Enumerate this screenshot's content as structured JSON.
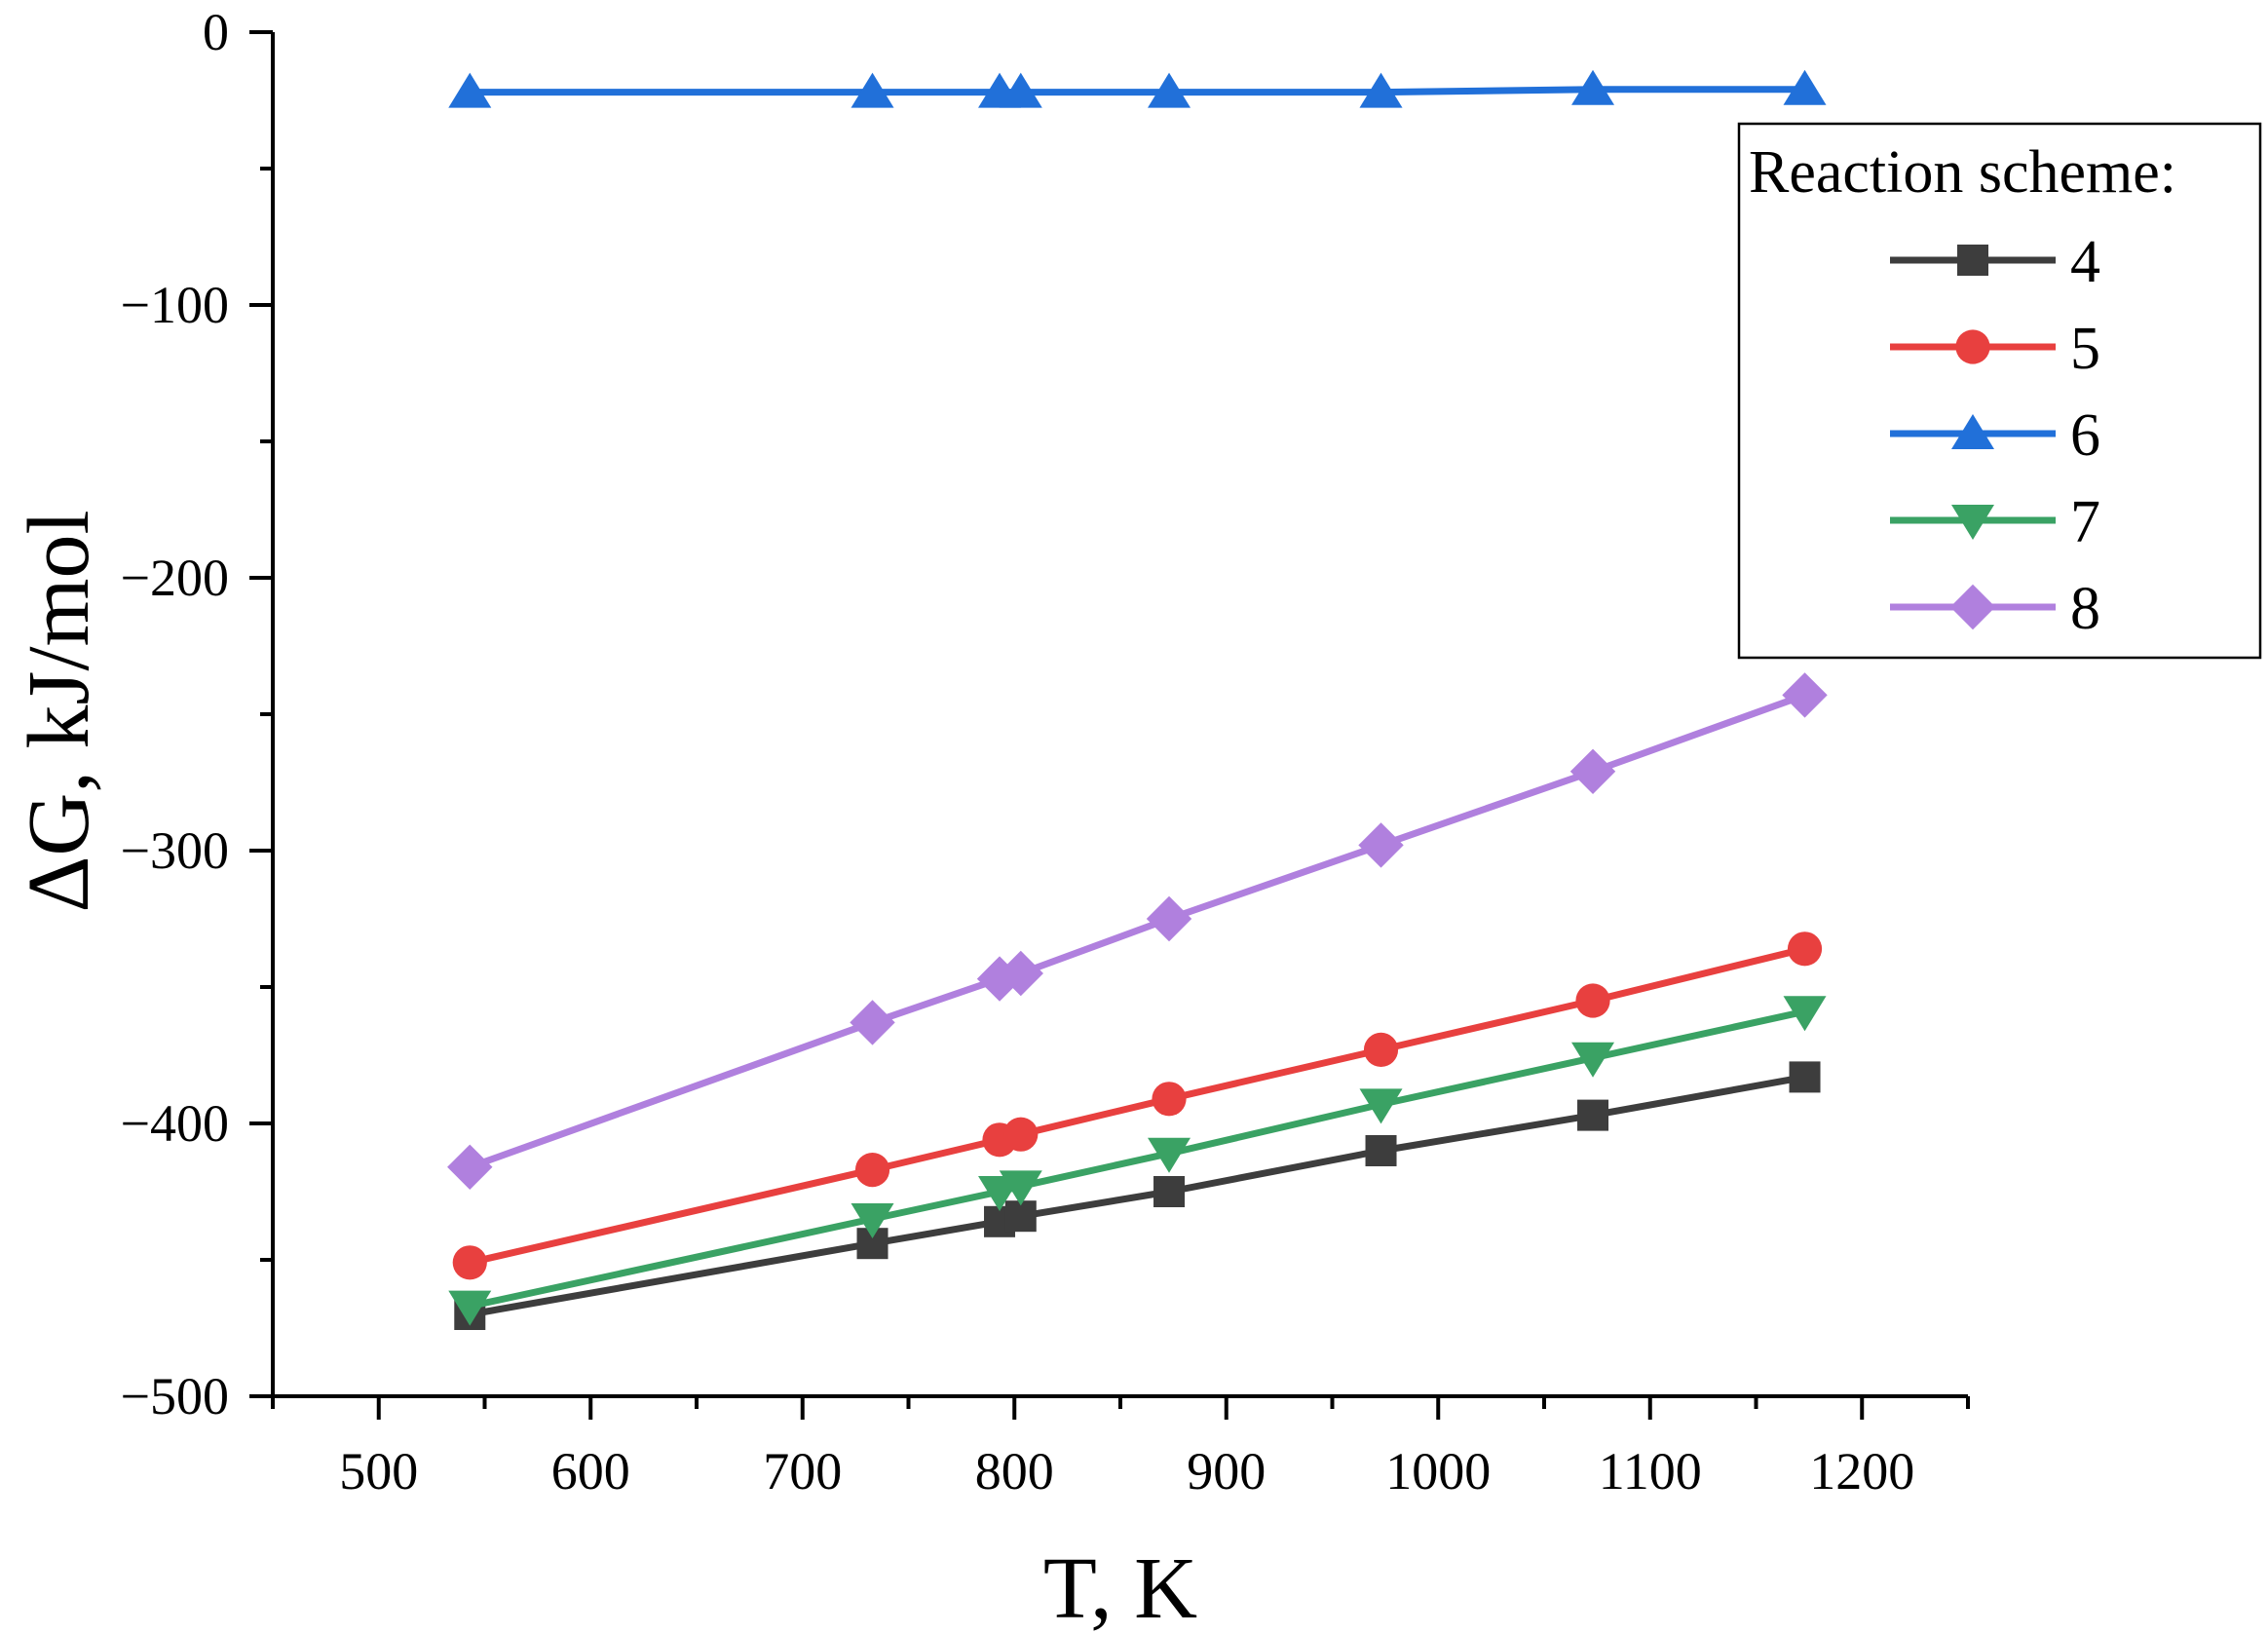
{
  "chart_data": {
    "type": "line",
    "title": "",
    "xlabel": "T, K",
    "ylabel": "ΔG, kJ/mol",
    "xlim": [
      450,
      1250
    ],
    "ylim": [
      -500,
      0
    ],
    "xticks": [
      500,
      600,
      700,
      800,
      900,
      1000,
      1100,
      1200
    ],
    "yticks": [
      0,
      -100,
      -200,
      -300,
      -400,
      -500
    ],
    "ytick_labels": [
      "0",
      "−100",
      "−200",
      "−300",
      "−400",
      "−500"
    ],
    "x": [
      543,
      733,
      793,
      803,
      873,
      973,
      1073,
      1173
    ],
    "legend": {
      "title": "Reaction scheme:",
      "position": "top-right"
    },
    "series": [
      {
        "name": "4",
        "marker": "square",
        "color": "#3d3d3d",
        "values": [
          -470,
          -444,
          -436,
          -434,
          -425,
          -410,
          -397,
          -383
        ]
      },
      {
        "name": "5",
        "marker": "circle",
        "color": "#e8403f",
        "values": [
          -451,
          -417,
          -406,
          -404,
          -391,
          -373,
          -355,
          -336
        ]
      },
      {
        "name": "6",
        "marker": "triangle-up",
        "color": "#2170d9",
        "values": [
          -22,
          -22,
          -22,
          -22,
          -22,
          -22,
          -21,
          -21
        ]
      },
      {
        "name": "7",
        "marker": "triangle-down",
        "color": "#3aa264",
        "values": [
          -467,
          -435,
          -425,
          -423,
          -411,
          -393,
          -376,
          -359
        ]
      },
      {
        "name": "8",
        "marker": "diamond",
        "color": "#b080de",
        "values": [
          -416,
          -363,
          -347,
          -345,
          -325,
          -298,
          -271,
          -243
        ]
      }
    ]
  }
}
